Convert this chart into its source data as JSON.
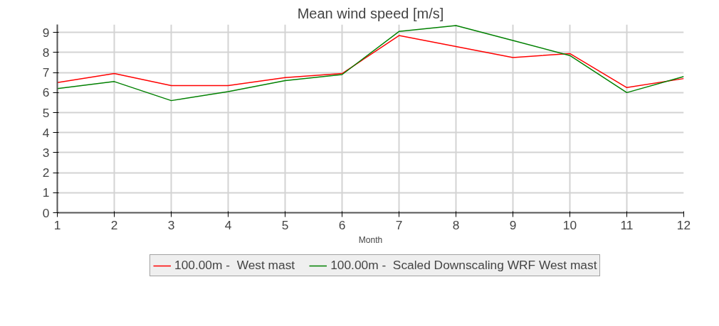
{
  "chart_data": {
    "type": "line",
    "title": "Mean wind speed [m/s]",
    "xlabel": "Month",
    "x": [
      1,
      2,
      3,
      4,
      5,
      6,
      7,
      8,
      9,
      10,
      11,
      12
    ],
    "series": [
      {
        "name": "100.00m -  West mast",
        "color": "#ff0000",
        "values": [
          6.5,
          6.95,
          6.35,
          6.35,
          6.75,
          6.95,
          8.85,
          8.3,
          7.75,
          7.95,
          6.25,
          6.7
        ]
      },
      {
        "name": "100.00m -  Scaled Downscaling WRF West mast",
        "color": "#008000",
        "values": [
          6.2,
          6.55,
          5.6,
          6.05,
          6.6,
          6.9,
          9.05,
          9.35,
          8.6,
          7.85,
          6.0,
          6.8
        ]
      }
    ],
    "xlim": [
      1,
      12
    ],
    "ylim": [
      0,
      9.4
    ],
    "xticks": [
      1,
      2,
      3,
      4,
      5,
      6,
      7,
      8,
      9,
      10,
      11,
      12
    ],
    "yticks": [
      0,
      1,
      2,
      3,
      4,
      5,
      6,
      7,
      8,
      9
    ],
    "grid": true,
    "legend": "bottom",
    "marker": "none",
    "line_style": "solid"
  }
}
